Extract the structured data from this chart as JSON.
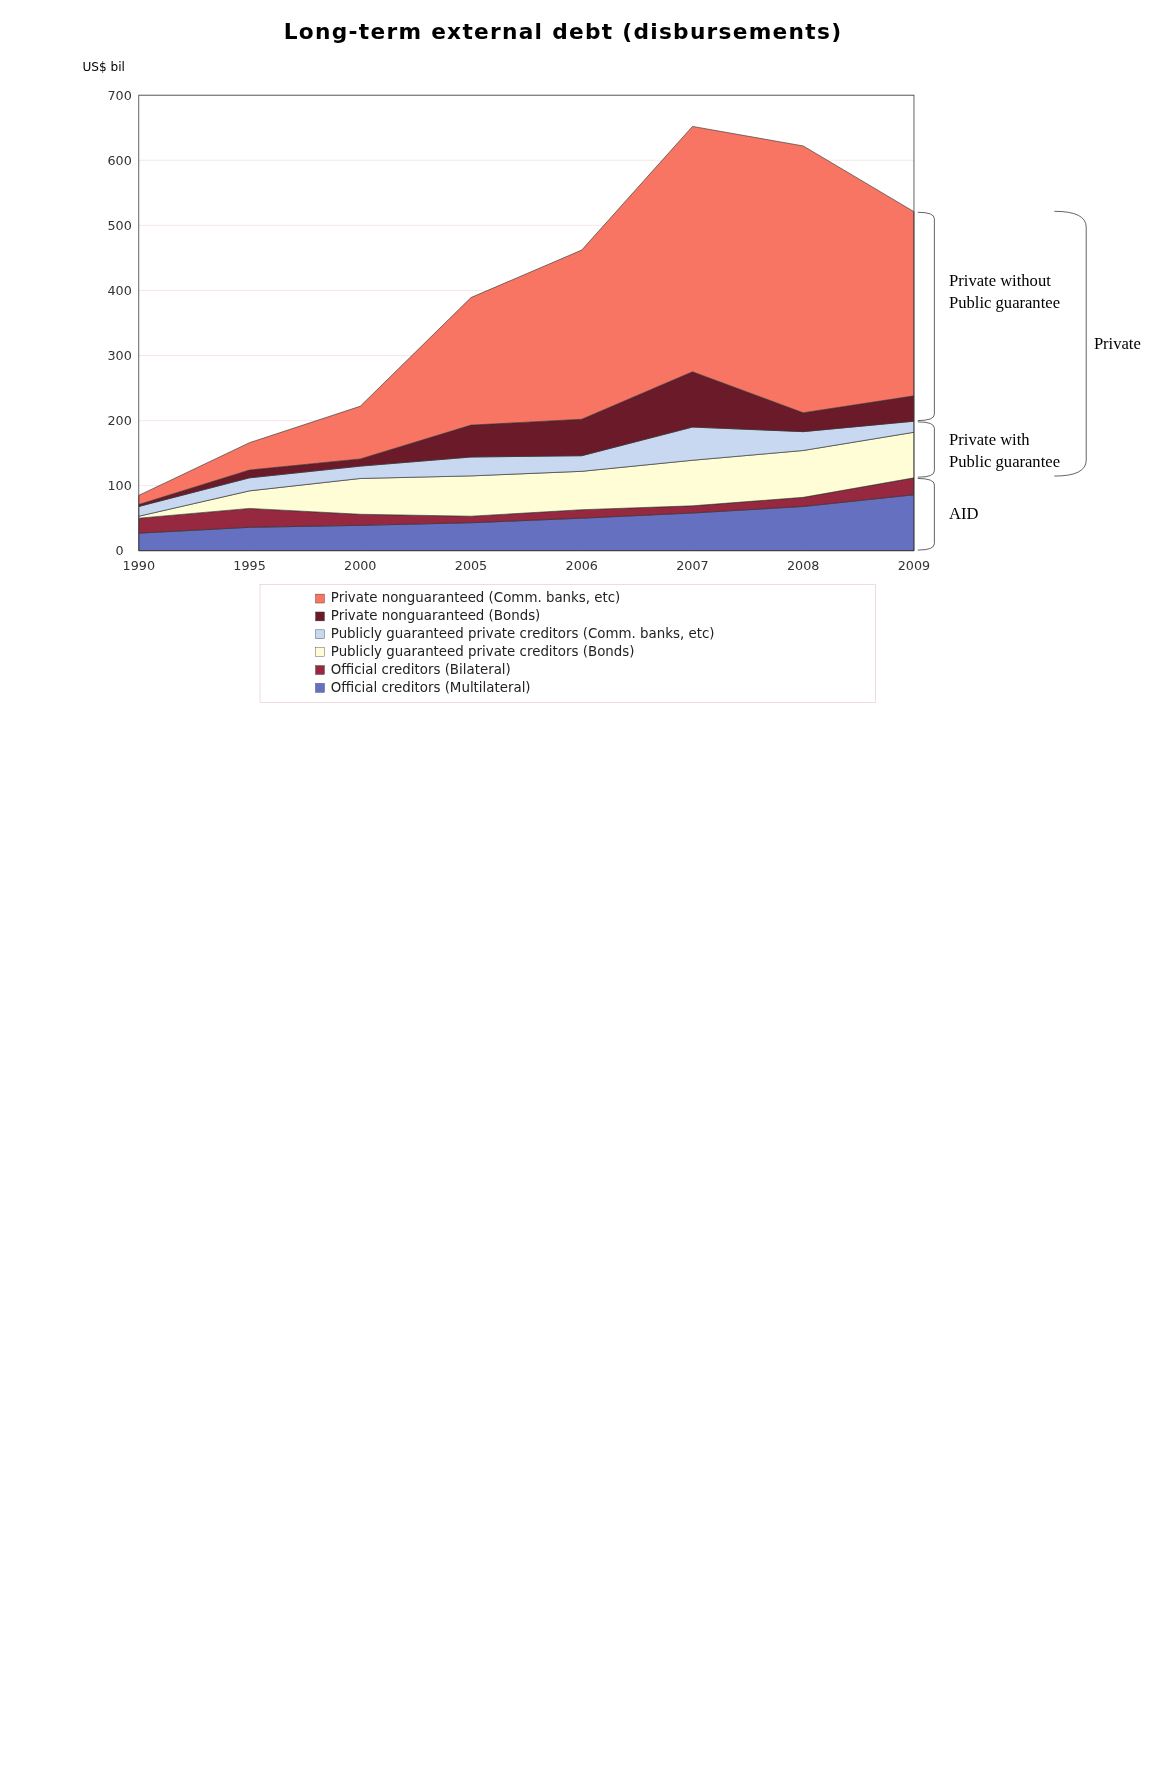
{
  "chart_data": {
    "type": "area",
    "title": "Long-term external debt (disbursements)",
    "ylabel": "US$ bil",
    "stacked": true,
    "categories": [
      "1990",
      "1995",
      "2000",
      "2005",
      "2006",
      "2007",
      "2008",
      "2009"
    ],
    "series": [
      {
        "name": "Official creditors (Multilateral)",
        "color": "#6670c0",
        "values": [
          27,
          36,
          39,
          43,
          50,
          58,
          68,
          86
        ]
      },
      {
        "name": "Official creditors (Bilateral)",
        "color": "#96283f",
        "values": [
          23,
          29,
          17,
          10,
          13,
          11,
          14,
          26
        ]
      },
      {
        "name": "Publicly guaranteed private creditors (Bonds)",
        "color": "#fffdd6",
        "values": [
          3,
          27,
          55,
          62,
          59,
          70,
          72,
          70
        ]
      },
      {
        "name": "Publicly guaranteed private creditors (Comm. banks, etc)",
        "color": "#c8d8f0",
        "values": [
          15,
          20,
          19,
          29,
          24,
          51,
          29,
          17
        ]
      },
      {
        "name": "Private nonguaranteed (Bonds)",
        "color": "#6b1a2a",
        "values": [
          3,
          12,
          11,
          49,
          56,
          85,
          29,
          39
        ]
      },
      {
        "name": "Private nonguaranteed (Comm. banks, etc)",
        "color": "#f87564",
        "values": [
          14,
          42,
          81,
          196,
          260,
          377,
          410,
          283
        ]
      }
    ],
    "ylim": [
      0,
      700
    ],
    "yticks": [
      0,
      100,
      200,
      300,
      400,
      500,
      600,
      700
    ],
    "grid": "y",
    "legend": "bottom left",
    "annotations": [
      "AID",
      "Private with\nPublic guarantee",
      "Private without\nPublic guarantee",
      "Private"
    ]
  }
}
